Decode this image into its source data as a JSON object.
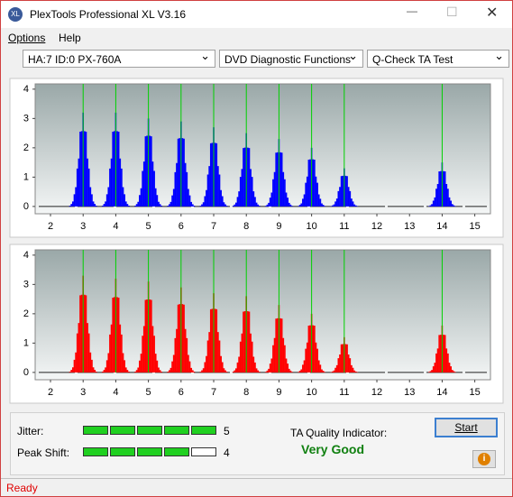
{
  "window": {
    "title": "PlexTools Professional XL V3.16"
  },
  "menu": [
    "Options",
    "Help"
  ],
  "toolbar": {
    "drive": "HA:7 ID:0  PX-760A",
    "function": "DVD Diagnostic Functions",
    "test": "Q-Check TA Test"
  },
  "chart_data": [
    {
      "type": "bar",
      "x": [
        3,
        4,
        5,
        6,
        7,
        8,
        9,
        10,
        11,
        14
      ],
      "values": [
        3.2,
        3.2,
        3.0,
        2.9,
        2.7,
        2.5,
        2.3,
        2.0,
        1.3,
        1.5
      ],
      "color": "#0000ff",
      "xlim": [
        1.53,
        15.48
      ],
      "ylim": [
        -0.25,
        4.18
      ],
      "xticks": [
        2,
        3,
        4,
        5,
        6,
        7,
        8,
        9,
        10,
        11,
        12,
        13,
        14,
        15
      ],
      "yticks": [
        0,
        1,
        2,
        3,
        4
      ]
    },
    {
      "type": "bar",
      "x": [
        3,
        4,
        5,
        6,
        7,
        8,
        9,
        10,
        11,
        14
      ],
      "values": [
        3.3,
        3.2,
        3.1,
        2.9,
        2.7,
        2.6,
        2.3,
        2.0,
        1.2,
        1.6
      ],
      "color": "#ff0000",
      "xlim": [
        1.53,
        15.48
      ],
      "ylim": [
        -0.25,
        4.18
      ],
      "xticks": [
        2,
        3,
        4,
        5,
        6,
        7,
        8,
        9,
        10,
        11,
        12,
        13,
        14,
        15
      ],
      "yticks": [
        0,
        1,
        2,
        3,
        4
      ]
    }
  ],
  "results": {
    "jitter_label": "Jitter:",
    "jitter": 5,
    "peak_shift_label": "Peak Shift:",
    "peak_shift": 4,
    "ta_label": "TA Quality Indicator:",
    "ta_value": "Very Good",
    "start": "Start"
  },
  "status": "Ready"
}
